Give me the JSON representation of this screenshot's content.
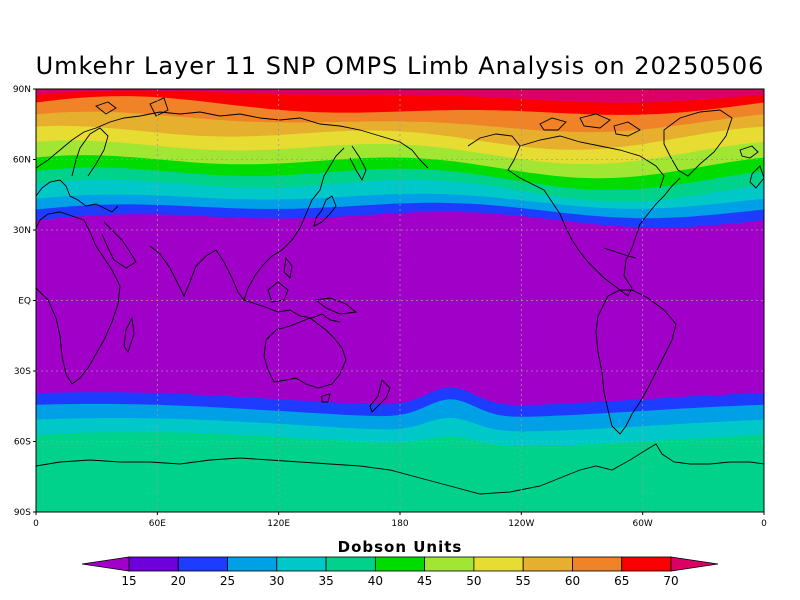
{
  "title": "Umkehr Layer 11 SNP OMPS Limb Analysis on 20250506",
  "colorbar_title": "Dobson Units",
  "chart_data": {
    "type": "heatmap",
    "projection": "cylindrical equidistant",
    "y_ticks": [
      "90N",
      "60N",
      "30N",
      "EQ",
      "30S",
      "60S",
      "90S"
    ],
    "x_ticks": [
      "0",
      "60E",
      "120E",
      "180",
      "120W",
      "60W",
      "0"
    ],
    "grid": true,
    "levels": [
      15,
      20,
      25,
      30,
      35,
      40,
      45,
      50,
      55,
      60,
      65,
      70
    ],
    "colors": [
      "#a000c8",
      "#6e00dc",
      "#1e3cff",
      "#00a0e6",
      "#00c8c8",
      "#00d28c",
      "#00dc00",
      "#a0e632",
      "#e6dc32",
      "#e6af2d",
      "#f08228",
      "#fa0000",
      "#dc0064"
    ],
    "colorbar_extend": "both"
  }
}
